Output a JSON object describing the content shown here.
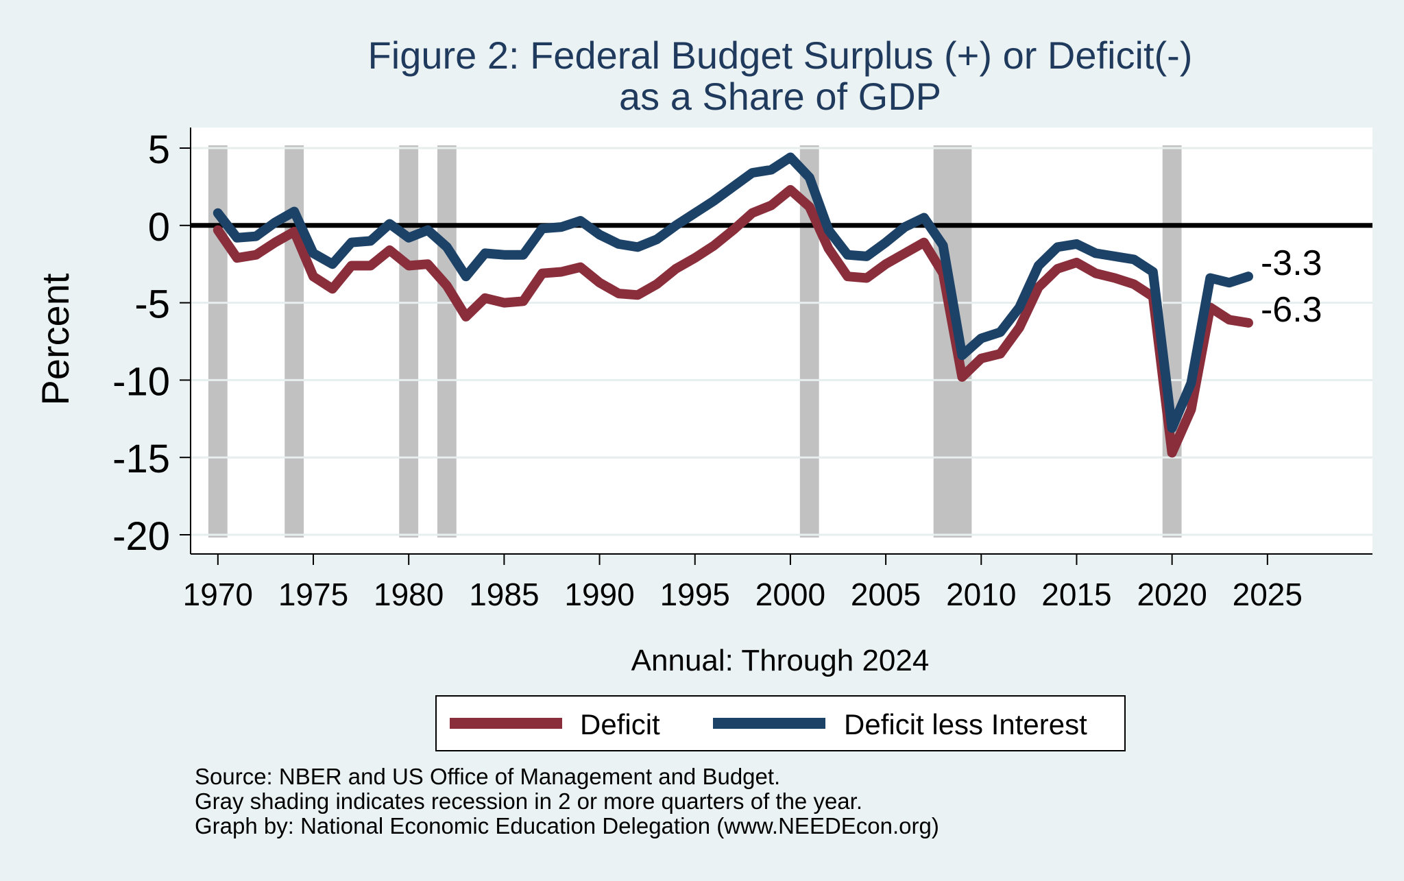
{
  "chart_data": {
    "type": "line",
    "title": "Figure 2: Federal Budget Surplus (+) or Deficit(-)",
    "subtitle": "as a Share of GDP",
    "xlabel": "Annual: Through 2024",
    "ylabel": "Percent",
    "xlim": [
      1969,
      2030
    ],
    "ylim": [
      -21,
      6
    ],
    "xticks": [
      1970,
      1975,
      1980,
      1985,
      1990,
      1995,
      2000,
      2005,
      2010,
      2015,
      2020,
      2025
    ],
    "yticks": [
      5,
      0,
      -5,
      -10,
      -15,
      -20
    ],
    "grid": true,
    "zero_line": true,
    "legend_position": "bottom",
    "recession_shading": [
      [
        1969.5,
        1970.5
      ],
      [
        1973.5,
        1974.5
      ],
      [
        1979.5,
        1980.5
      ],
      [
        1981.5,
        1982.5
      ],
      [
        2000.5,
        2001.5
      ],
      [
        2007.5,
        2009.5
      ],
      [
        2019.5,
        2020.5
      ]
    ],
    "x": [
      1970,
      1971,
      1972,
      1973,
      1974,
      1975,
      1976,
      1977,
      1978,
      1979,
      1980,
      1981,
      1982,
      1983,
      1984,
      1985,
      1986,
      1987,
      1988,
      1989,
      1990,
      1991,
      1992,
      1993,
      1994,
      1995,
      1996,
      1997,
      1998,
      1999,
      2000,
      2001,
      2002,
      2003,
      2004,
      2005,
      2006,
      2007,
      2008,
      2009,
      2010,
      2011,
      2012,
      2013,
      2014,
      2015,
      2016,
      2017,
      2018,
      2019,
      2020,
      2021,
      2022,
      2023,
      2024
    ],
    "series": [
      {
        "name": "Deficit",
        "color": "#8b2e3c",
        "values": [
          -0.3,
          -2.1,
          -1.9,
          -1.1,
          -0.4,
          -3.3,
          -4.1,
          -2.6,
          -2.6,
          -1.6,
          -2.6,
          -2.5,
          -3.9,
          -5.9,
          -4.7,
          -5.0,
          -4.9,
          -3.1,
          -3.0,
          -2.7,
          -3.7,
          -4.4,
          -4.5,
          -3.8,
          -2.8,
          -2.1,
          -1.3,
          -0.3,
          0.8,
          1.3,
          2.3,
          1.2,
          -1.5,
          -3.3,
          -3.4,
          -2.5,
          -1.8,
          -1.1,
          -3.1,
          -9.8,
          -8.6,
          -8.3,
          -6.6,
          -4.0,
          -2.8,
          -2.4,
          -3.1,
          -3.4,
          -3.8,
          -4.6,
          -14.7,
          -11.9,
          -5.3,
          -6.1,
          -6.3
        ]
      },
      {
        "name": "Deficit less Interest",
        "color": "#1d4268",
        "values": [
          0.8,
          -0.8,
          -0.7,
          0.2,
          0.9,
          -1.8,
          -2.5,
          -1.1,
          -1.0,
          0.1,
          -0.8,
          -0.3,
          -1.4,
          -3.3,
          -1.8,
          -1.9,
          -1.9,
          -0.2,
          -0.1,
          0.3,
          -0.6,
          -1.2,
          -1.4,
          -0.9,
          0.0,
          0.8,
          1.6,
          2.5,
          3.4,
          3.6,
          4.4,
          3.1,
          -0.3,
          -1.9,
          -2.0,
          -1.1,
          -0.1,
          0.5,
          -1.3,
          -8.4,
          -7.3,
          -6.9,
          -5.3,
          -2.6,
          -1.4,
          -1.2,
          -1.8,
          -2.0,
          -2.2,
          -3.0,
          -13.1,
          -10.2,
          -3.4,
          -3.7,
          -3.3
        ]
      }
    ],
    "annotations": [
      {
        "text": "-3.3",
        "x": 2024,
        "y": -3.3
      },
      {
        "text": "-6.3",
        "x": 2024,
        "y": -6.3
      }
    ],
    "notes": [
      "Source: NBER and US Office of Management and Budget.",
      "Gray shading indicates recession in 2 or more quarters of the year.",
      "Graph by: National Economic Education Delegation (www.NEEDEcon.org)"
    ]
  }
}
